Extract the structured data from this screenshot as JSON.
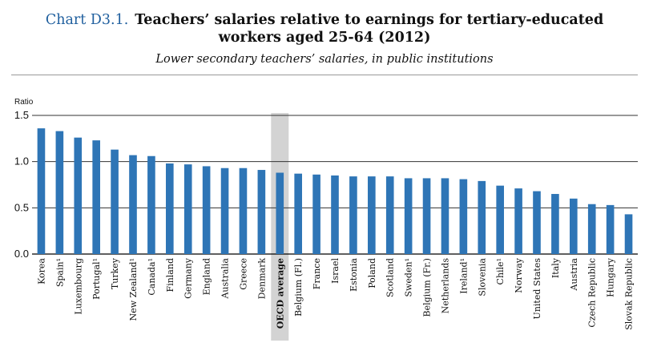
{
  "header": {
    "chart_number": "Chart D3.1.",
    "title_line1": "Teachers’ salaries relative to earnings for tertiary-educated",
    "title_line2": "workers aged 25-64 (2012)",
    "subtitle": "Lower secondary teachers’ salaries, in public institutions"
  },
  "chart_data": {
    "type": "bar",
    "title": "Teachers’ salaries relative to earnings for tertiary-educated workers aged 25-64 (2012)",
    "subtitle": "Lower secondary teachers’ salaries, in public institutions",
    "ylabel": "Ratio",
    "ylim": [
      0,
      1.5
    ],
    "yticks": [
      "0.0",
      "0.5",
      "1.0",
      "1.5"
    ],
    "grid": true,
    "highlight_category": "OECD average",
    "bar_color": "#2e75b6",
    "highlight_band_color": "#d3d3d3",
    "categories": [
      "Korea",
      "Spain¹",
      "Luxembourg",
      "Portugal¹",
      "Turkey",
      "New Zealand¹",
      "Canada¹",
      "Finland",
      "Germany",
      "England",
      "Australia",
      "Greece",
      "Denmark",
      "OECD average",
      "Belgium (Fl.)",
      "France",
      "Israel",
      "Estonia",
      "Poland",
      "Scotland",
      "Sweden¹",
      "Belgium (Fr.)",
      "Netherlands",
      "Ireland¹",
      "Slovenia",
      "Chile¹",
      "Norway",
      "United States",
      "Italy",
      "Austria",
      "Czech Republic",
      "Hungary",
      "Slovak Republic"
    ],
    "values": [
      1.36,
      1.33,
      1.26,
      1.23,
      1.13,
      1.07,
      1.06,
      0.98,
      0.97,
      0.95,
      0.93,
      0.93,
      0.91,
      0.88,
      0.87,
      0.86,
      0.85,
      0.84,
      0.84,
      0.84,
      0.82,
      0.82,
      0.82,
      0.81,
      0.79,
      0.74,
      0.71,
      0.68,
      0.65,
      0.6,
      0.54,
      0.53,
      0.43
    ]
  }
}
